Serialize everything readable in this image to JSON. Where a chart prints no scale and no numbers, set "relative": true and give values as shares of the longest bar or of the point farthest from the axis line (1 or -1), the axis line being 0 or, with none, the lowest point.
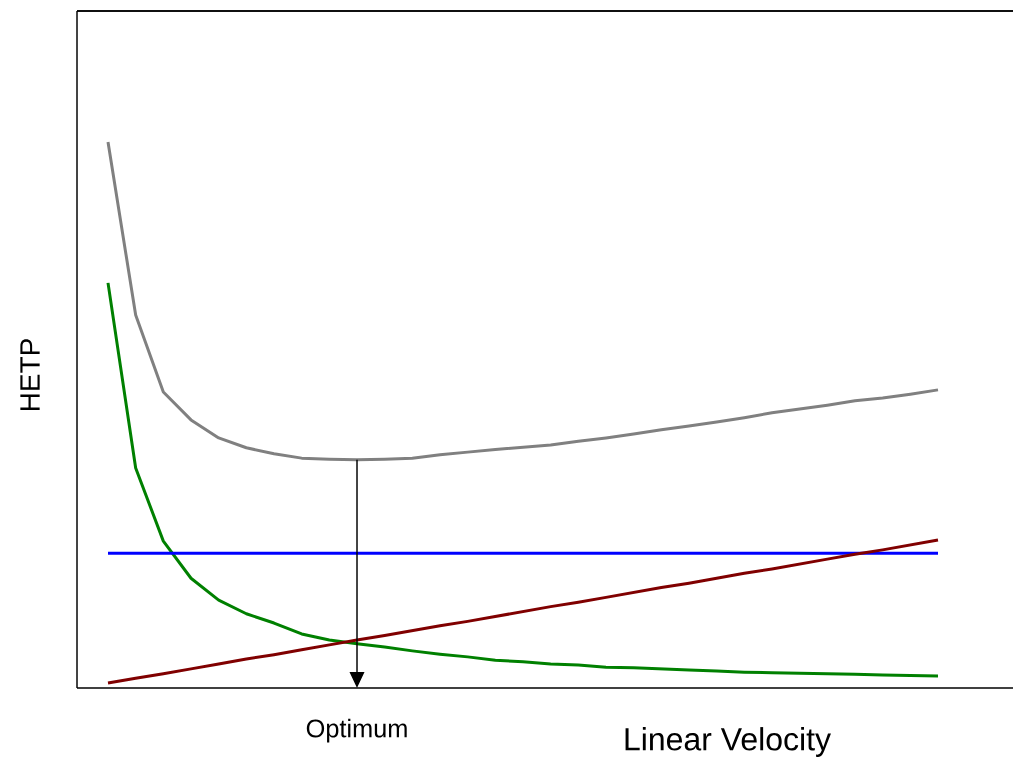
{
  "chart_data": {
    "type": "line",
    "relative": true,
    "xlabel": "Linear Velocity",
    "ylabel": "HETP",
    "annotations": [
      "Optimum"
    ],
    "categories": [
      null,
      null,
      null,
      null,
      null,
      null,
      null,
      null,
      null,
      null,
      null,
      null,
      null,
      null,
      null,
      null,
      null,
      null,
      null,
      null,
      null,
      null,
      null,
      null,
      null,
      null,
      null,
      null,
      null,
      null,
      null
    ],
    "series": [
      {
        "color": "#808080",
        "values": [
          1.0,
          0.683,
          0.542,
          0.491,
          0.458,
          0.44,
          0.429,
          0.421,
          0.419,
          0.418,
          0.419,
          0.421,
          0.427,
          0.432,
          0.437,
          0.441,
          0.445,
          0.452,
          0.458,
          0.465,
          0.473,
          0.48,
          0.487,
          0.495,
          0.504,
          0.511,
          0.518,
          0.526,
          0.531,
          0.538,
          0.546
        ]
      },
      {
        "color": "#008000",
        "values": [
          0.742,
          0.403,
          0.269,
          0.201,
          0.161,
          0.136,
          0.119,
          0.099,
          0.088,
          0.081,
          0.075,
          0.068,
          0.062,
          0.057,
          0.051,
          0.048,
          0.044,
          0.042,
          0.038,
          0.037,
          0.035,
          0.033,
          0.031,
          0.029,
          0.028,
          0.027,
          0.026,
          0.025,
          0.024,
          0.023,
          0.022
        ]
      },
      {
        "color": "#0000ff",
        "values": [
          0.247,
          0.247,
          0.247,
          0.247,
          0.247,
          0.247,
          0.247,
          0.247,
          0.247,
          0.247,
          0.247,
          0.247,
          0.247,
          0.247,
          0.247,
          0.247,
          0.247,
          0.247,
          0.247,
          0.247,
          0.247,
          0.247,
          0.247,
          0.247,
          0.247,
          0.247,
          0.247,
          0.247,
          0.247,
          0.247,
          0.247
        ]
      },
      {
        "color": "#800000",
        "values": [
          0.009,
          0.018,
          0.026,
          0.035,
          0.044,
          0.053,
          0.061,
          0.07,
          0.079,
          0.088,
          0.096,
          0.105,
          0.114,
          0.122,
          0.131,
          0.14,
          0.149,
          0.157,
          0.166,
          0.175,
          0.184,
          0.192,
          0.201,
          0.21,
          0.218,
          0.227,
          0.236,
          0.245,
          0.253,
          0.262,
          0.271
        ]
      }
    ]
  }
}
